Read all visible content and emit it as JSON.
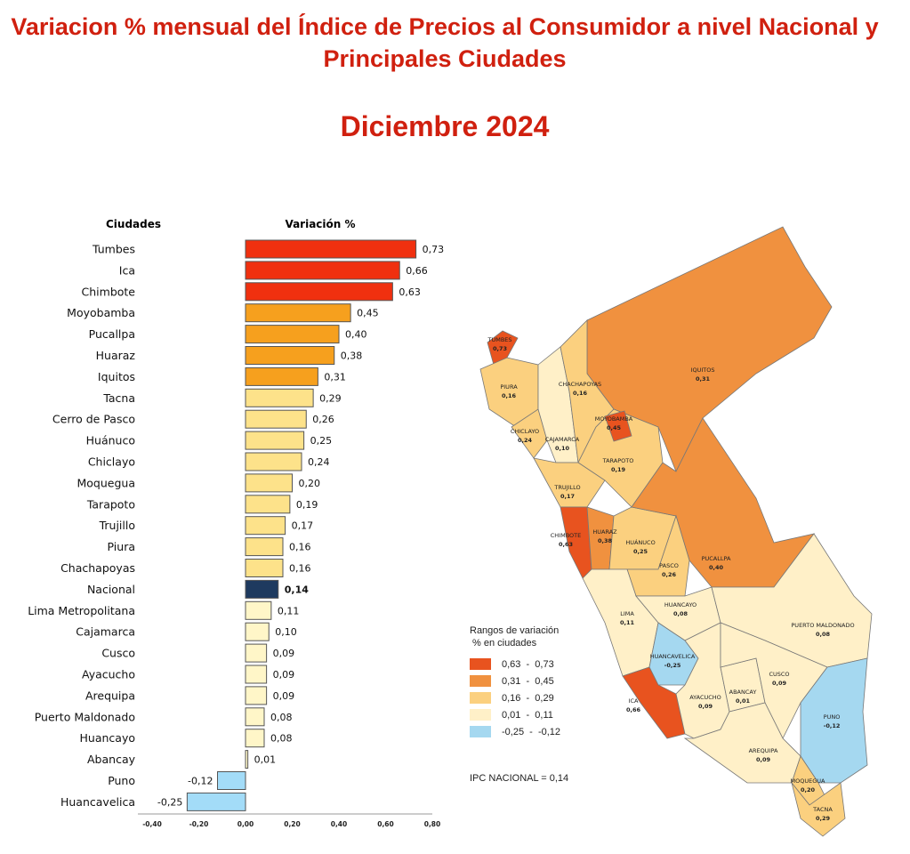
{
  "header": {
    "title": "Variacion % mensual del Índice de Precios al Consumidor a nivel Nacional y Principales Ciudades",
    "period": "Diciembre 2024"
  },
  "chart_data": {
    "type": "bar",
    "orientation": "horizontal",
    "category_header": "Ciudades",
    "value_header": "Variación %",
    "categories": [
      "Tumbes",
      "Ica",
      "Chimbote",
      "Moyobamba",
      "Pucallpa",
      "Huaraz",
      "Iquitos",
      "Tacna",
      "Cerro de Pasco",
      "Huánuco",
      "Chiclayo",
      "Moquegua",
      "Tarapoto",
      "Trujillo",
      "Piura",
      "Chachapoyas",
      "Nacional",
      "Lima Metropolitana",
      "Cajamarca",
      "Cusco",
      "Ayacucho",
      "Arequipa",
      "Puerto Maldonado",
      "Huancayo",
      "Abancay",
      "Puno",
      "Huancavelica"
    ],
    "values": [
      0.73,
      0.66,
      0.63,
      0.45,
      0.4,
      0.38,
      0.31,
      0.29,
      0.26,
      0.25,
      0.24,
      0.2,
      0.19,
      0.17,
      0.16,
      0.16,
      0.14,
      0.11,
      0.1,
      0.09,
      0.09,
      0.09,
      0.08,
      0.08,
      0.01,
      -0.12,
      -0.25
    ],
    "value_labels": [
      "0,73",
      "0,66",
      "0,63",
      "0,45",
      "0,40",
      "0,38",
      "0,31",
      "0,29",
      "0,26",
      "0,25",
      "0,24",
      "0,20",
      "0,19",
      "0,17",
      "0,16",
      "0,16",
      "0,14",
      "0,11",
      "0,10",
      "0,09",
      "0,09",
      "0,09",
      "0,08",
      "0,08",
      "0,01",
      "-0,12",
      "-0,25"
    ],
    "xlim": [
      -0.4,
      0.8
    ],
    "xticks": [
      "-0,40",
      "-0,20",
      "0,00",
      "0,20",
      "0,40",
      "0,60",
      "0,80"
    ],
    "xtick_values": [
      -0.4,
      -0.2,
      0,
      0.2,
      0.4,
      0.6,
      0.8
    ],
    "grid": false,
    "highlight": "Nacional",
    "colors": {
      "red": "#f0300f",
      "orange": "#f6a01e",
      "yellow": "#fde28a",
      "pale": "#fff6c8",
      "blue": "#a3dcf8",
      "nacional": "#1e3a5f"
    }
  },
  "map": {
    "labels": [
      {
        "city": "TUMBES",
        "value": "0,73"
      },
      {
        "city": "PIURA",
        "value": "0,16"
      },
      {
        "city": "CHACHAPOYAS",
        "value": "0,16"
      },
      {
        "city": "IQUITOS",
        "value": "0,31"
      },
      {
        "city": "CHICLAYO",
        "value": "0,24"
      },
      {
        "city": "CAJAMARCA",
        "value": "0,10"
      },
      {
        "city": "MOYOBAMBA",
        "value": "0,45"
      },
      {
        "city": "TARAPOTO",
        "value": "0,19"
      },
      {
        "city": "TRUJILLO",
        "value": "0,17"
      },
      {
        "city": "CHIMBOTE",
        "value": "0,63"
      },
      {
        "city": "HUARAZ",
        "value": "0,38"
      },
      {
        "city": "HUÁNUCO",
        "value": "0,25"
      },
      {
        "city": "PUCALLPA",
        "value": "0,40"
      },
      {
        "city": "PASCO",
        "value": "0,26"
      },
      {
        "city": "LIMA",
        "value": "0,11"
      },
      {
        "city": "HUANCAYO",
        "value": "0,08"
      },
      {
        "city": "PUERTO MALDONADO",
        "value": "0,08"
      },
      {
        "city": "HUANCAVELICA",
        "value": "-0,25"
      },
      {
        "city": "CUSCO",
        "value": "0,09"
      },
      {
        "city": "ABANCAY",
        "value": "0,01"
      },
      {
        "city": "AYACUCHO",
        "value": "0,09"
      },
      {
        "city": "ICA",
        "value": "0,66"
      },
      {
        "city": "PUNO",
        "value": "-0,12"
      },
      {
        "city": "AREQUIPA",
        "value": "0,09"
      },
      {
        "city": "MOQUEGUA",
        "value": "0,20"
      },
      {
        "city": "TACNA",
        "value": "0,29"
      }
    ],
    "legend": {
      "title": "Rangos de variación",
      "subtitle": "% en ciudades",
      "ranges": [
        {
          "label": "0,63  -  0,73",
          "color": "#e8531f"
        },
        {
          "label": "0,31  -  0,45",
          "color": "#f0913f"
        },
        {
          "label": "0,16  -  0,29",
          "color": "#fbd07f"
        },
        {
          "label": "0,01  -  0,11",
          "color": "#fff0c8"
        },
        {
          "label": "-0,25  -  -0,12",
          "color": "#a5d8f0"
        }
      ],
      "national": "IPC NACIONAL =  0,14"
    }
  }
}
